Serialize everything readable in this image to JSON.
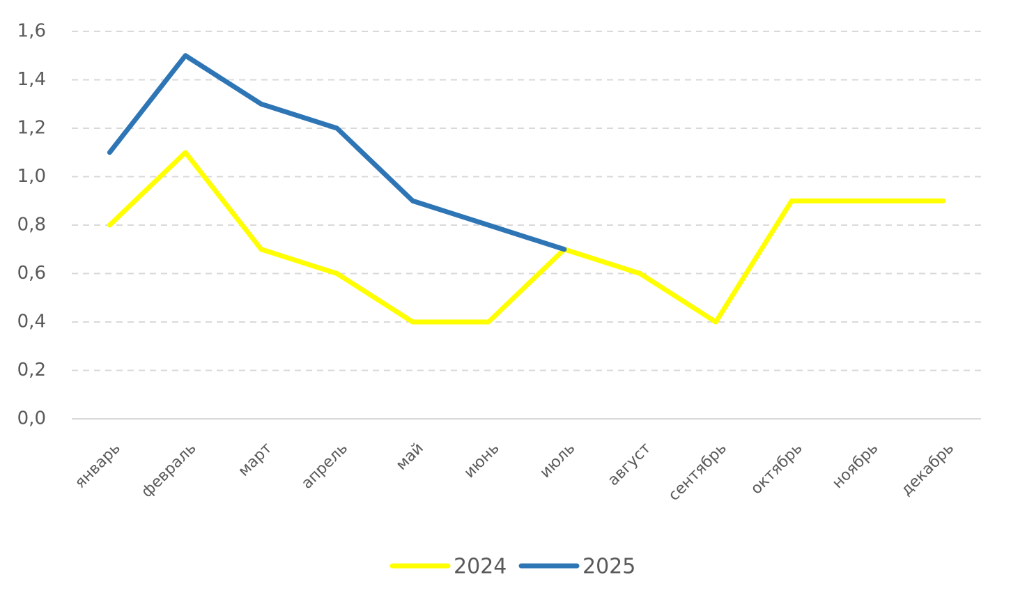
{
  "chart_data": {
    "type": "line",
    "categories": [
      "январь",
      "февраль",
      "март",
      "апрель",
      "май",
      "июнь",
      "июль",
      "август",
      "сентябрь",
      "октябрь",
      "ноябрь",
      "декабрь"
    ],
    "series": [
      {
        "name": "2024",
        "color": "#ffff00",
        "values": [
          0.8,
          1.1,
          0.7,
          0.6,
          0.4,
          0.4,
          0.7,
          0.6,
          0.4,
          0.9,
          0.9,
          0.9
        ]
      },
      {
        "name": "2025",
        "color": "#2e75b6",
        "values": [
          1.1,
          1.5,
          1.3,
          1.2,
          0.9,
          0.8,
          0.7,
          null,
          null,
          null,
          null,
          null
        ]
      }
    ],
    "ylim": [
      0,
      1.6
    ],
    "yticks": [
      {
        "value": 0,
        "label": "0,0"
      },
      {
        "value": 0.2,
        "label": "0,2"
      },
      {
        "value": 0.4,
        "label": "0,4"
      },
      {
        "value": 0.6,
        "label": "0,6"
      },
      {
        "value": 0.8,
        "label": "0,8"
      },
      {
        "value": 1.0,
        "label": "1,0"
      },
      {
        "value": 1.2,
        "label": "1,2"
      },
      {
        "value": 1.4,
        "label": "1,4"
      },
      {
        "value": 1.6,
        "label": "1,6"
      }
    ],
    "grid": true,
    "legend": "bottom"
  }
}
